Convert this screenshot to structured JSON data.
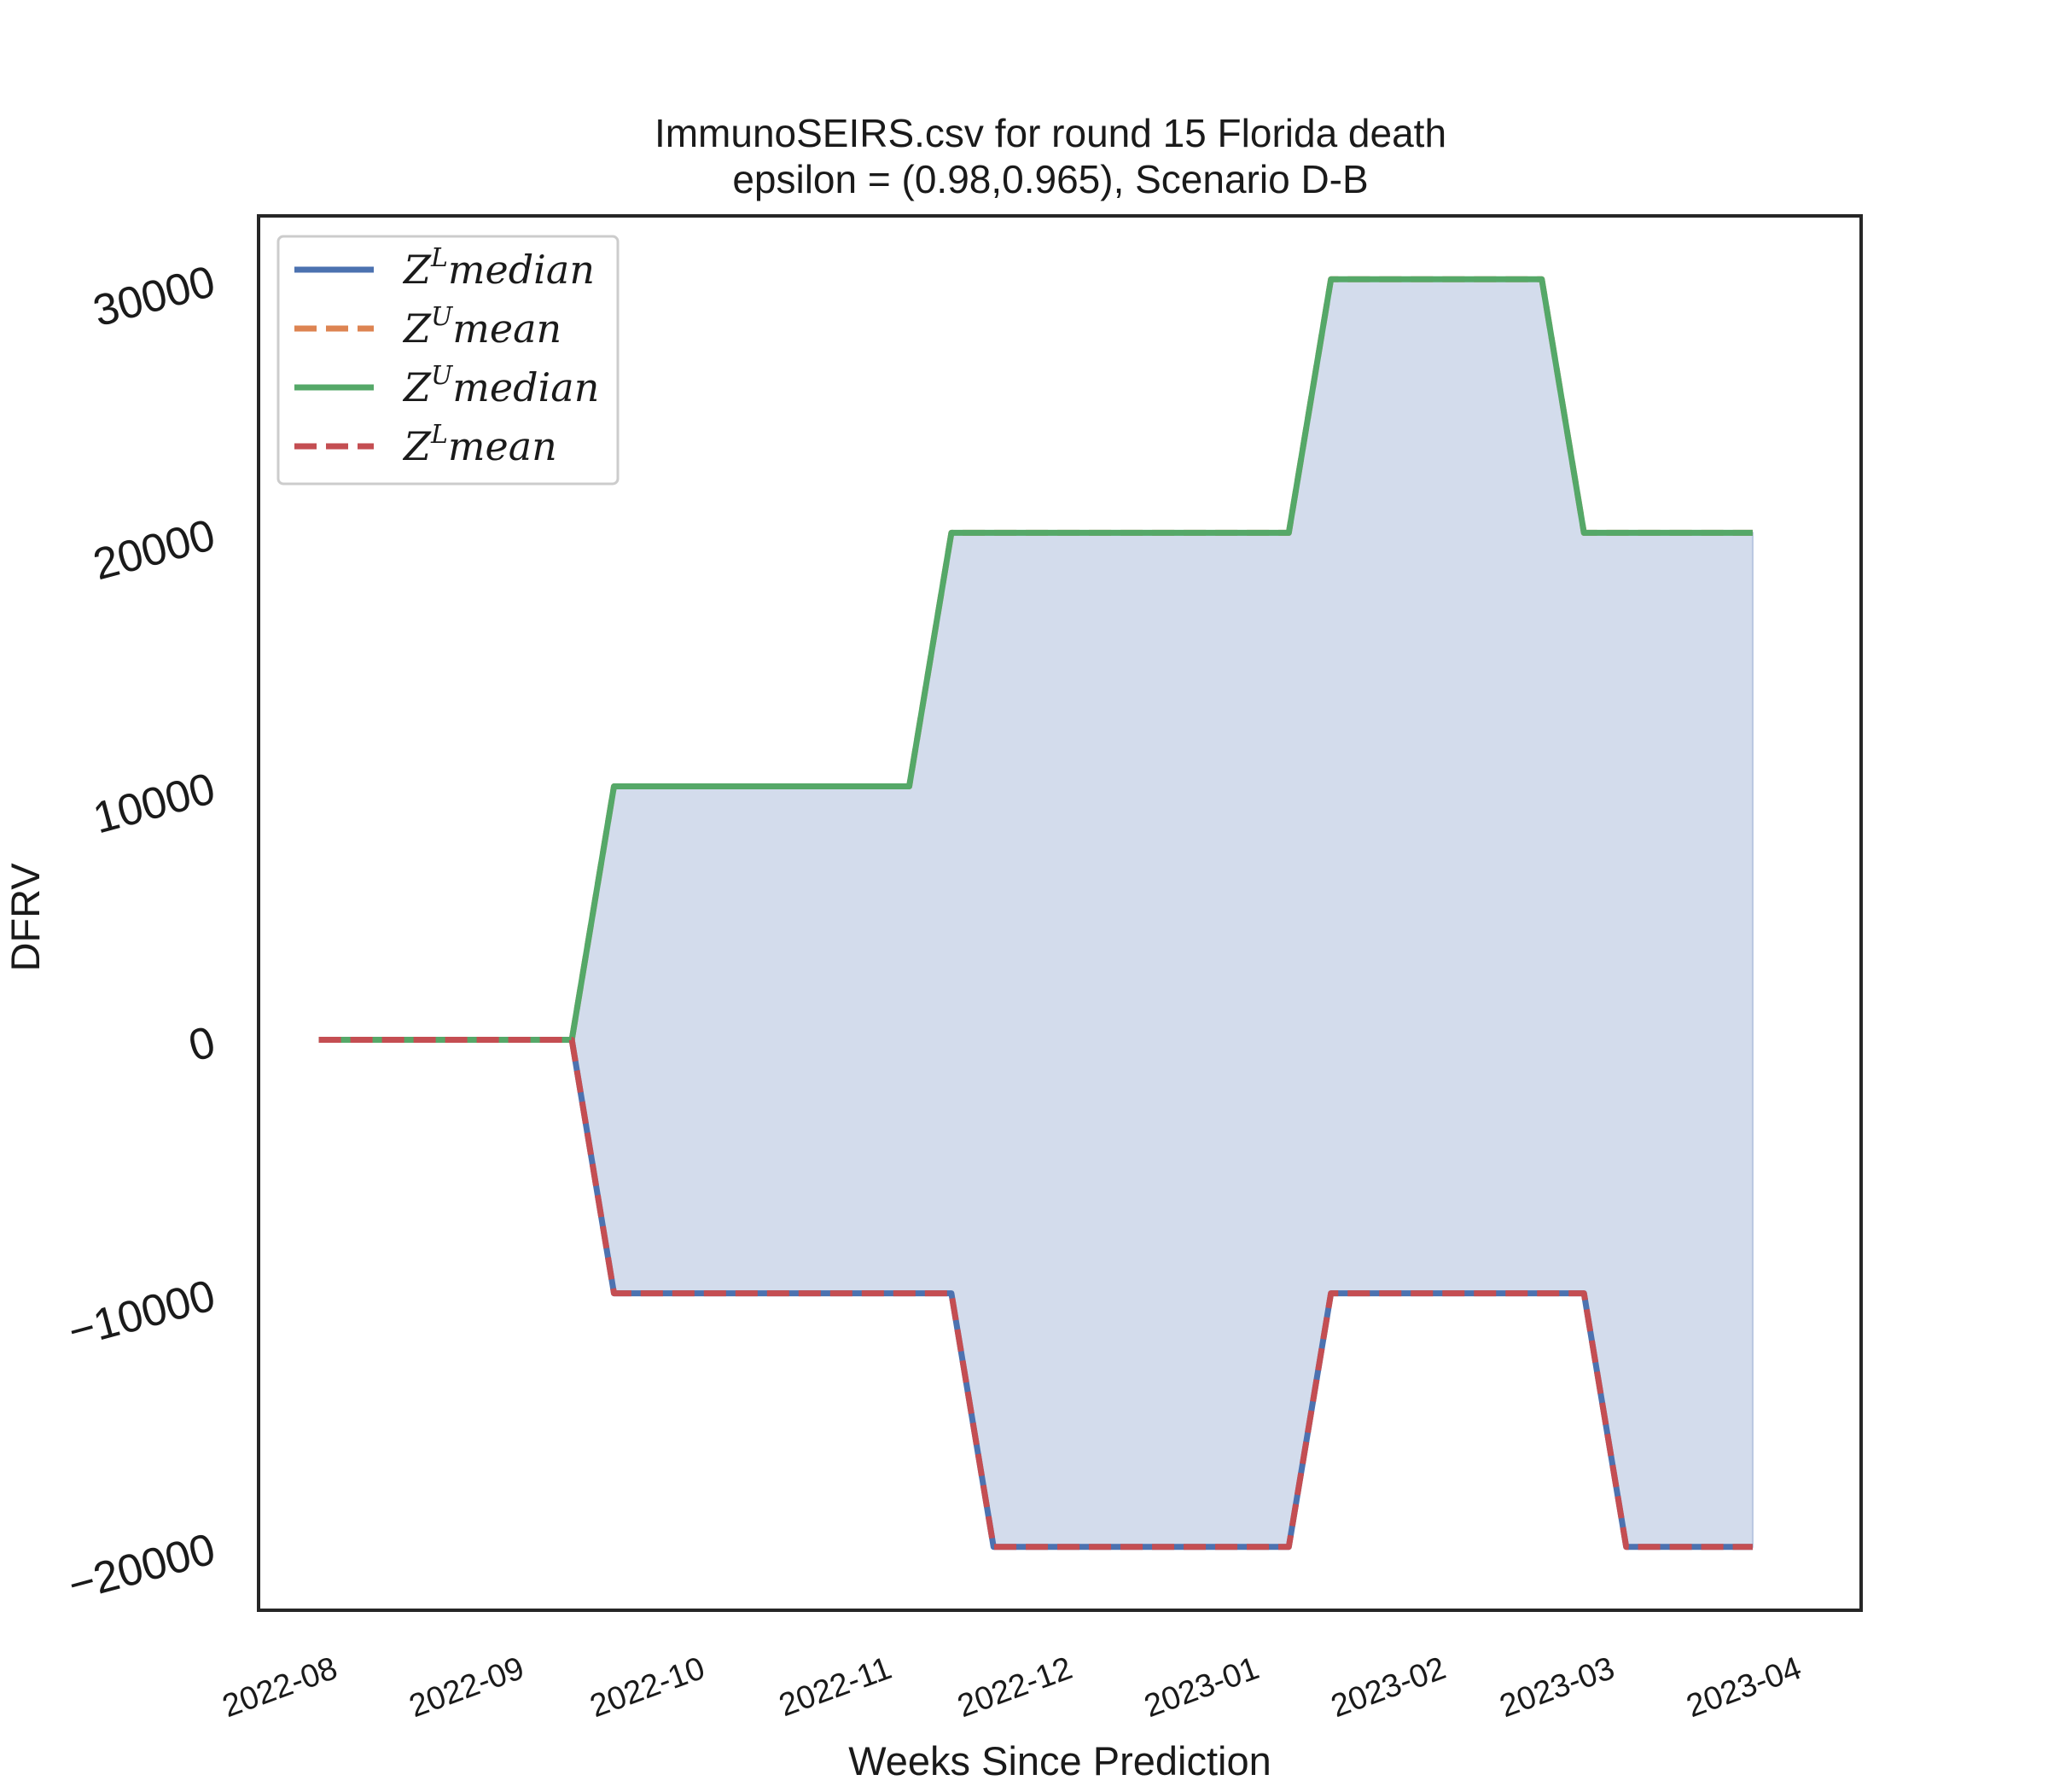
{
  "chart_data": {
    "type": "line",
    "title_lines": [
      "ImmunoSEIRS.csv for round 15 Florida  death",
      "epsilon = (0.98,0.965), Scenario D-B"
    ],
    "xlabel": "Weeks Since Prediction",
    "ylabel": "DFRV",
    "xlim": [
      "2022-07-20",
      "2023-04-12"
    ],
    "ylim": [
      -22500,
      32500
    ],
    "x_ticks": [
      "2022-08",
      "2022-09",
      "2022-10",
      "2022-11",
      "2022-12",
      "2023-01",
      "2023-02",
      "2023-03",
      "2023-04"
    ],
    "y_ticks": [
      -20000,
      -10000,
      0,
      10000,
      20000,
      30000
    ],
    "y_tick_labels": [
      "−20000",
      "−10000",
      "0",
      "10000",
      "20000",
      "30000"
    ],
    "grid": false,
    "legend_position": "top-left",
    "fill_between": {
      "lower": "ZL median",
      "upper": "ZU median",
      "color": "#d3dcec"
    },
    "x": [
      "2022-07-30",
      "2022-08-06",
      "2022-08-13",
      "2022-08-20",
      "2022-08-27",
      "2022-09-03",
      "2022-09-10",
      "2022-09-17",
      "2022-09-24",
      "2022-10-01",
      "2022-10-08",
      "2022-10-15",
      "2022-10-22",
      "2022-10-29",
      "2022-11-05",
      "2022-11-12",
      "2022-11-19",
      "2022-11-26",
      "2022-12-03",
      "2022-12-10",
      "2022-12-17",
      "2022-12-24",
      "2022-12-31",
      "2023-01-07",
      "2023-01-14",
      "2023-01-21",
      "2023-01-28",
      "2023-02-04",
      "2023-02-11",
      "2023-02-18",
      "2023-02-25",
      "2023-03-04",
      "2023-03-11",
      "2023-03-18",
      "2023-03-25"
    ],
    "series": [
      {
        "name": "ZL median",
        "legend_base": "Z",
        "legend_sup": "L",
        "legend_rest": "median",
        "color": "#4c72b0",
        "dash": "solid",
        "values": [
          0,
          0,
          0,
          0,
          0,
          0,
          0,
          -10000,
          -10000,
          -10000,
          -10000,
          -10000,
          -10000,
          -10000,
          -10000,
          -10000,
          -20000,
          -20000,
          -20000,
          -20000,
          -20000,
          -20000,
          -20000,
          -20000,
          -10000,
          -10000,
          -10000,
          -10000,
          -10000,
          -10000,
          -10000,
          -20000,
          -20000,
          -20000,
          -20000
        ]
      },
      {
        "name": "ZU mean",
        "legend_base": "Z",
        "legend_sup": "U",
        "legend_rest": "mean",
        "color": "#dd8452",
        "dash": "dashed",
        "values": [
          0,
          0,
          0,
          0,
          0,
          0,
          0,
          10000,
          10000,
          10000,
          10000,
          10000,
          10000,
          10000,
          10000,
          20000,
          20000,
          20000,
          20000,
          20000,
          20000,
          20000,
          20000,
          20000,
          30000,
          30000,
          30000,
          30000,
          30000,
          30000,
          20000,
          20000,
          20000,
          20000,
          20000
        ]
      },
      {
        "name": "ZU median",
        "legend_base": "Z",
        "legend_sup": "U",
        "legend_rest": "median",
        "color": "#55a868",
        "dash": "solid",
        "values": [
          0,
          0,
          0,
          0,
          0,
          0,
          0,
          10000,
          10000,
          10000,
          10000,
          10000,
          10000,
          10000,
          10000,
          20000,
          20000,
          20000,
          20000,
          20000,
          20000,
          20000,
          20000,
          20000,
          30000,
          30000,
          30000,
          30000,
          30000,
          30000,
          20000,
          20000,
          20000,
          20000,
          20000
        ]
      },
      {
        "name": "ZL mean",
        "legend_base": "Z",
        "legend_sup": "L",
        "legend_rest": "mean",
        "color": "#c44e52",
        "dash": "dashed",
        "values": [
          0,
          0,
          0,
          0,
          0,
          0,
          0,
          -10000,
          -10000,
          -10000,
          -10000,
          -10000,
          -10000,
          -10000,
          -10000,
          -10000,
          -20000,
          -20000,
          -20000,
          -20000,
          -20000,
          -20000,
          -20000,
          -20000,
          -10000,
          -10000,
          -10000,
          -10000,
          -10000,
          -10000,
          -10000,
          -20000,
          -20000,
          -20000,
          -20000
        ]
      }
    ]
  }
}
